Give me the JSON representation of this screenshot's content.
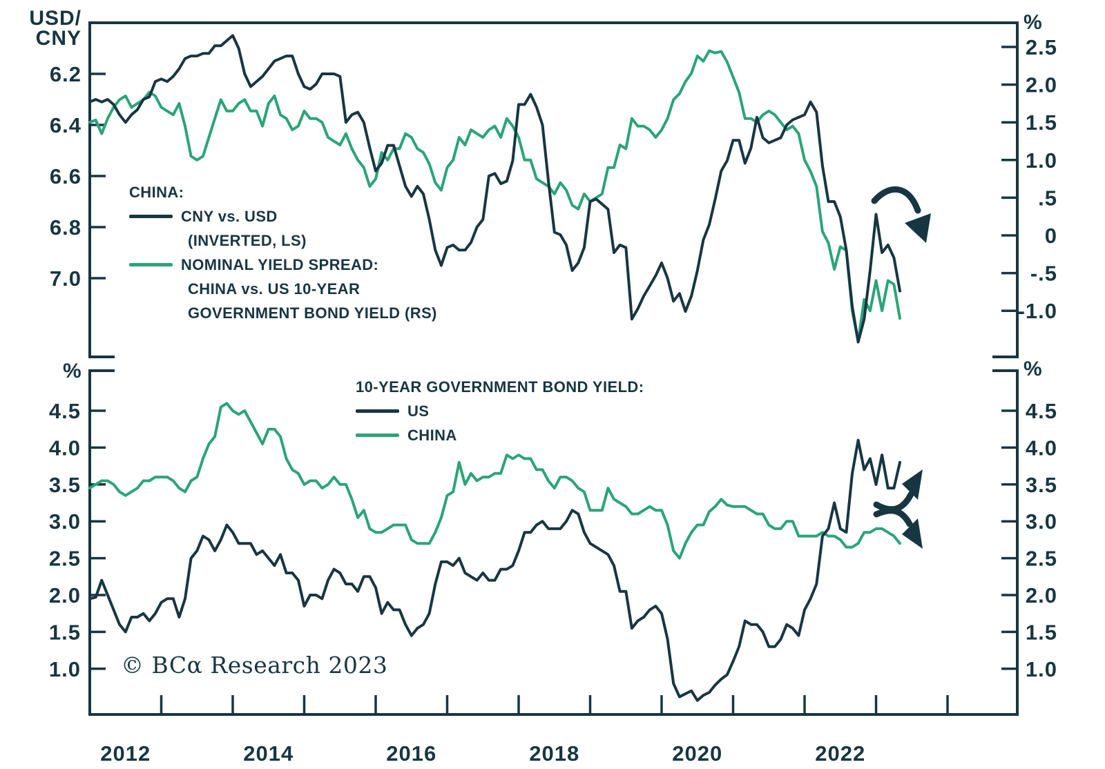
{
  "palette": {
    "navy": "#173642",
    "green": "#2ba478",
    "background": "#ffffff"
  },
  "copyright": "© BCα Research 2023",
  "top_panel": {
    "left_axis": {
      "title_line1": "USD/",
      "title_line2": "CNY",
      "ticks": [
        {
          "label": "6.2",
          "value": 6.2
        },
        {
          "label": "6.4",
          "value": 6.4
        },
        {
          "label": "6.6",
          "value": 6.6
        },
        {
          "label": "6.8",
          "value": 6.8
        },
        {
          "label": "7.0",
          "value": 7.0
        }
      ]
    },
    "right_axis": {
      "title": "%",
      "ticks": [
        {
          "label": "2.5",
          "value": 2.5
        },
        {
          "label": "2.0",
          "value": 2.0
        },
        {
          "label": "1.5",
          "value": 1.5
        },
        {
          "label": "1.0",
          "value": 1.0
        },
        {
          "label": ".5",
          "value": 0.5
        },
        {
          "label": "0",
          "value": 0
        },
        {
          "label": "-.5",
          "value": -0.5
        },
        {
          "label": "-1.0",
          "value": -1.0
        }
      ]
    },
    "legend": {
      "heading": "CHINA:",
      "series1_line1": "CNY vs. USD",
      "series1_line2": "(INVERTED, LS)",
      "series2_line1": "NOMINAL YIELD SPREAD:",
      "series2_line2": "CHINA vs. US 10-YEAR",
      "series2_line3": "GOVERNMENT BOND YIELD (RS)"
    }
  },
  "bottom_panel": {
    "left_axis_title": "%",
    "right_axis_title": "%",
    "ticks": [
      {
        "label": "4.5",
        "value": 4.5
      },
      {
        "label": "4.0",
        "value": 4.0
      },
      {
        "label": "3.5",
        "value": 3.5
      },
      {
        "label": "3.0",
        "value": 3.0
      },
      {
        "label": "2.5",
        "value": 2.5
      },
      {
        "label": "2.0",
        "value": 2.0
      },
      {
        "label": "1.5",
        "value": 1.5
      },
      {
        "label": "1.0",
        "value": 1.0
      }
    ],
    "legend": {
      "heading": "10-YEAR GOVERNMENT BOND YIELD:",
      "series1": "US",
      "series2": "CHINA"
    }
  },
  "x_axis": {
    "tick_years": [
      2013,
      2014,
      2015,
      2016,
      2017,
      2018,
      2019,
      2020,
      2021,
      2022,
      2023,
      2024
    ],
    "labels": [
      {
        "text": "2012",
        "year": 2012.5
      },
      {
        "text": "2014",
        "year": 2014.5
      },
      {
        "text": "2016",
        "year": 2016.5
      },
      {
        "text": "2018",
        "year": 2018.5
      },
      {
        "text": "2020",
        "year": 2020.5
      },
      {
        "text": "2022",
        "year": 2022.5
      }
    ],
    "x_range_years": [
      2012.0,
      2025.0
    ]
  },
  "annotations": [
    {
      "panel": "top",
      "shape": "curved-arrow",
      "direction": "down-right"
    },
    {
      "panel": "bottom",
      "shape": "curved-arrow",
      "direction": "up-right"
    },
    {
      "panel": "bottom",
      "shape": "curved-arrow",
      "direction": "down-right"
    }
  ],
  "chart_data": [
    {
      "type": "line",
      "panel": "top",
      "x_note": "monthly points, Jan 2012 through May 2023",
      "x0_year": 2012.0,
      "dx_years": 0.0833333,
      "left_axis_label": "USD/CNY",
      "left_axis_inverted": true,
      "left_ylim": [
        6.0,
        7.31
      ],
      "right_axis_label": "%",
      "right_ylim": [
        -1.61,
        2.82
      ],
      "series": [
        {
          "name": "CNY vs. USD (INVERTED, LS)",
          "axis": "left",
          "color_key": "navy",
          "values": [
            6.31,
            6.3,
            6.31,
            6.3,
            6.32,
            6.36,
            6.39,
            6.36,
            6.34,
            6.3,
            6.29,
            6.23,
            6.22,
            6.23,
            6.21,
            6.18,
            6.14,
            6.13,
            6.13,
            6.12,
            6.12,
            6.09,
            6.09,
            6.07,
            6.05,
            6.1,
            6.2,
            6.25,
            6.23,
            6.21,
            6.18,
            6.15,
            6.14,
            6.13,
            6.13,
            6.2,
            6.25,
            6.26,
            6.24,
            6.2,
            6.2,
            6.2,
            6.21,
            6.39,
            6.36,
            6.35,
            6.39,
            6.49,
            6.58,
            6.55,
            6.48,
            6.48,
            6.56,
            6.64,
            6.68,
            6.64,
            6.67,
            6.77,
            6.89,
            6.95,
            6.88,
            6.87,
            6.89,
            6.89,
            6.86,
            6.8,
            6.77,
            6.6,
            6.59,
            6.63,
            6.62,
            6.54,
            6.32,
            6.32,
            6.28,
            6.33,
            6.4,
            6.62,
            6.82,
            6.83,
            6.87,
            6.97,
            6.94,
            6.88,
            6.7,
            6.69,
            6.71,
            6.73,
            6.9,
            6.87,
            6.88,
            7.16,
            7.12,
            7.07,
            7.03,
            6.99,
            6.94,
            7.0,
            7.09,
            7.06,
            7.13,
            7.07,
            6.97,
            6.85,
            6.79,
            6.69,
            6.58,
            6.54,
            6.46,
            6.46,
            6.55,
            6.49,
            6.37,
            6.45,
            6.47,
            6.46,
            6.45,
            6.4,
            6.38,
            6.37,
            6.36,
            6.31,
            6.35,
            6.56,
            6.7,
            6.7,
            6.76,
            6.89,
            7.11,
            7.25,
            7.16,
            6.97,
            6.75,
            6.9,
            6.87,
            6.92,
            7.05
          ]
        },
        {
          "name": "NOMINAL YIELD SPREAD: CHINA vs. US 10-YEAR GOVERNMENT BOND YIELD (RS)",
          "axis": "right",
          "color_key": "green",
          "values": [
            1.5,
            1.53,
            1.35,
            1.55,
            1.7,
            1.8,
            1.85,
            1.7,
            1.75,
            1.8,
            1.9,
            1.85,
            1.7,
            1.65,
            1.6,
            1.75,
            1.45,
            1.05,
            1.0,
            1.05,
            1.3,
            1.55,
            1.8,
            1.65,
            1.65,
            1.75,
            1.8,
            1.65,
            1.65,
            1.45,
            1.75,
            1.85,
            1.6,
            1.55,
            1.4,
            1.45,
            1.65,
            1.55,
            1.55,
            1.5,
            1.3,
            1.25,
            1.2,
            1.35,
            1.15,
            1.0,
            0.9,
            0.65,
            0.75,
            1.1,
            1.0,
            1.15,
            1.15,
            1.35,
            1.3,
            1.15,
            1.1,
            0.95,
            0.7,
            0.6,
            0.9,
            1.0,
            1.3,
            1.2,
            1.4,
            1.35,
            1.3,
            1.4,
            1.45,
            1.3,
            1.55,
            1.45,
            1.3,
            1.0,
            1.0,
            0.75,
            0.7,
            0.65,
            0.55,
            0.7,
            0.6,
            0.4,
            0.35,
            0.55,
            0.45,
            0.5,
            0.55,
            0.9,
            0.9,
            1.2,
            1.15,
            1.55,
            1.45,
            1.45,
            1.4,
            1.3,
            1.4,
            1.55,
            1.8,
            1.88,
            2.04,
            2.15,
            2.38,
            2.31,
            2.45,
            2.42,
            2.44,
            2.3,
            2.1,
            1.9,
            1.55,
            1.55,
            1.5,
            1.6,
            1.65,
            1.6,
            1.5,
            1.4,
            1.45,
            1.35,
            1.0,
            0.85,
            0.65,
            0.05,
            -0.1,
            -0.45,
            -0.15,
            -0.2,
            -1.0,
            -1.4,
            -0.85,
            -1.0,
            -0.6,
            -1.0,
            -0.6,
            -0.65,
            -1.1
          ]
        }
      ]
    },
    {
      "type": "line",
      "panel": "bottom",
      "x_note": "monthly points, Jan 2012 through May 2023",
      "x0_year": 2012.0,
      "dx_years": 0.0833333,
      "ylabel": "%",
      "ylim": [
        0.38,
        5.04
      ],
      "series": [
        {
          "name": "US",
          "axis": "left",
          "color_key": "navy",
          "values": [
            1.95,
            1.97,
            2.2,
            2.0,
            1.8,
            1.6,
            1.5,
            1.7,
            1.7,
            1.75,
            1.65,
            1.75,
            1.9,
            1.95,
            1.95,
            1.7,
            1.95,
            2.5,
            2.6,
            2.8,
            2.75,
            2.6,
            2.75,
            2.95,
            2.85,
            2.7,
            2.7,
            2.7,
            2.55,
            2.6,
            2.5,
            2.4,
            2.55,
            2.3,
            2.3,
            2.2,
            1.85,
            2.0,
            2.0,
            1.95,
            2.2,
            2.35,
            2.3,
            2.15,
            2.15,
            2.05,
            2.25,
            2.25,
            2.1,
            1.75,
            1.9,
            1.8,
            1.8,
            1.6,
            1.45,
            1.55,
            1.6,
            1.75,
            2.15,
            2.45,
            2.45,
            2.4,
            2.5,
            2.3,
            2.25,
            2.2,
            2.3,
            2.2,
            2.2,
            2.35,
            2.35,
            2.4,
            2.6,
            2.85,
            2.85,
            2.95,
            3.0,
            2.9,
            2.9,
            2.9,
            3.0,
            3.15,
            3.1,
            2.85,
            2.7,
            2.65,
            2.6,
            2.55,
            2.4,
            2.05,
            2.05,
            1.55,
            1.65,
            1.7,
            1.8,
            1.85,
            1.75,
            1.4,
            0.8,
            0.62,
            0.66,
            0.7,
            0.57,
            0.64,
            0.68,
            0.78,
            0.86,
            0.92,
            1.1,
            1.3,
            1.65,
            1.6,
            1.6,
            1.5,
            1.3,
            1.3,
            1.4,
            1.6,
            1.55,
            1.45,
            1.8,
            1.95,
            2.15,
            2.8,
            2.9,
            3.25,
            2.9,
            2.85,
            3.65,
            4.1,
            3.7,
            3.85,
            3.5,
            3.9,
            3.45,
            3.45,
            3.8
          ]
        },
        {
          "name": "CHINA",
          "axis": "left",
          "color_key": "green",
          "values": [
            3.45,
            3.5,
            3.55,
            3.55,
            3.5,
            3.4,
            3.35,
            3.4,
            3.45,
            3.55,
            3.55,
            3.6,
            3.6,
            3.6,
            3.55,
            3.45,
            3.4,
            3.55,
            3.6,
            3.85,
            4.05,
            4.15,
            4.55,
            4.6,
            4.5,
            4.45,
            4.5,
            4.35,
            4.2,
            4.05,
            4.25,
            4.25,
            4.15,
            3.85,
            3.7,
            3.65,
            3.5,
            3.55,
            3.55,
            3.45,
            3.5,
            3.6,
            3.5,
            3.5,
            3.3,
            3.05,
            3.15,
            2.9,
            2.85,
            2.85,
            2.9,
            2.95,
            2.95,
            2.95,
            2.75,
            2.7,
            2.7,
            2.7,
            2.85,
            3.05,
            3.35,
            3.4,
            3.8,
            3.5,
            3.65,
            3.55,
            3.6,
            3.6,
            3.65,
            3.65,
            3.9,
            3.85,
            3.9,
            3.85,
            3.85,
            3.7,
            3.7,
            3.55,
            3.45,
            3.6,
            3.6,
            3.55,
            3.45,
            3.4,
            3.15,
            3.15,
            3.15,
            3.45,
            3.3,
            3.25,
            3.2,
            3.1,
            3.1,
            3.15,
            3.2,
            3.15,
            3.15,
            2.95,
            2.6,
            2.5,
            2.7,
            2.85,
            2.95,
            2.95,
            3.13,
            3.2,
            3.3,
            3.22,
            3.2,
            3.2,
            3.2,
            3.15,
            3.1,
            3.1,
            2.95,
            2.9,
            2.9,
            3.0,
            3.0,
            2.8,
            2.8,
            2.8,
            2.8,
            2.85,
            2.8,
            2.8,
            2.75,
            2.65,
            2.65,
            2.7,
            2.85,
            2.85,
            2.9,
            2.9,
            2.85,
            2.8,
            2.7
          ]
        }
      ]
    }
  ]
}
